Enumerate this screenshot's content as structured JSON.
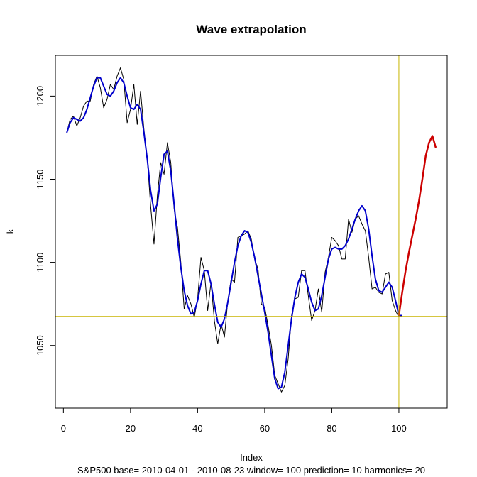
{
  "chart_data": {
    "type": "line",
    "title": "Wave extrapolation",
    "xlabel": "Index",
    "ylabel": "k",
    "caption": "S&P500  base= 2010-04-01 - 2010-08-23  window= 100  prediction= 10  harmonics= 20",
    "xlim": [
      -2.4,
      114.4
    ],
    "ylim": [
      1012.3,
      1224.5
    ],
    "xticks": [
      0,
      20,
      40,
      60,
      80,
      100
    ],
    "yticks": [
      1050,
      1100,
      1150,
      1200
    ],
    "grid": false,
    "colors": {
      "actual": "#000000",
      "fitted": "#0000cc",
      "prediction": "#cc0000",
      "reference": "#c8b400",
      "frame": "#000000"
    },
    "reference_lines": {
      "vline_x": 100,
      "hline_y": 1067.5
    },
    "series": [
      {
        "values": [
          1178,
          1186,
          1188,
          1182,
          1187,
          1194,
          1197,
          1197,
          1207,
          1212,
          1205,
          1193,
          1198,
          1207,
          1204,
          1212,
          1217,
          1210,
          1184,
          1192,
          1207,
          1183,
          1203,
          1180,
          1162,
          1134,
          1111,
          1140,
          1160,
          1153,
          1172,
          1160,
          1132,
          1121,
          1100,
          1072,
          1080,
          1075,
          1067,
          1078,
          1103,
          1095,
          1071,
          1088,
          1065,
          1051,
          1063,
          1055,
          1077,
          1090,
          1088,
          1115,
          1116,
          1117,
          1119,
          1114,
          1102,
          1096,
          1075,
          1073,
          1062,
          1050,
          1032,
          1027,
          1022,
          1026,
          1042,
          1068,
          1078,
          1079,
          1095,
          1095,
          1080,
          1065,
          1071,
          1084,
          1070,
          1094,
          1103,
          1115,
          1113,
          1110,
          1102,
          1102,
          1126,
          1118,
          1126,
          1128,
          1123,
          1119,
          1103,
          1084,
          1085,
          1082,
          1081,
          1093,
          1094,
          1077,
          1071,
          1067
        ]
      },
      {
        "values": [
          1178,
          1184,
          1187,
          1186,
          1185,
          1187,
          1192,
          1199,
          1206,
          1211,
          1211,
          1206,
          1201,
          1200,
          1203,
          1208,
          1211,
          1208,
          1200,
          1193,
          1192,
          1195,
          1192,
          1178,
          1162,
          1143,
          1131,
          1135,
          1151,
          1165,
          1167,
          1155,
          1135,
          1114,
          1097,
          1083,
          1074,
          1069,
          1070,
          1077,
          1087,
          1095,
          1095,
          1087,
          1075,
          1064,
          1061,
          1066,
          1076,
          1088,
          1100,
          1110,
          1116,
          1119,
          1118,
          1112,
          1103,
          1092,
          1081,
          1070,
          1058,
          1044,
          1030,
          1024,
          1025,
          1034,
          1050,
          1066,
          1079,
          1088,
          1093,
          1091,
          1084,
          1076,
          1071,
          1072,
          1080,
          1091,
          1102,
          1108,
          1109,
          1108,
          1108,
          1110,
          1114,
          1120,
          1126,
          1131,
          1134,
          1131,
          1120,
          1104,
          1090,
          1083,
          1082,
          1085,
          1088,
          1085,
          1077,
          1068,
          1068
        ]
      },
      {
        "x_start": 100,
        "values": [
          1068,
          1082,
          1095,
          1106,
          1116,
          1126,
          1137,
          1150,
          1164,
          1172,
          1176,
          1169
        ]
      }
    ]
  }
}
